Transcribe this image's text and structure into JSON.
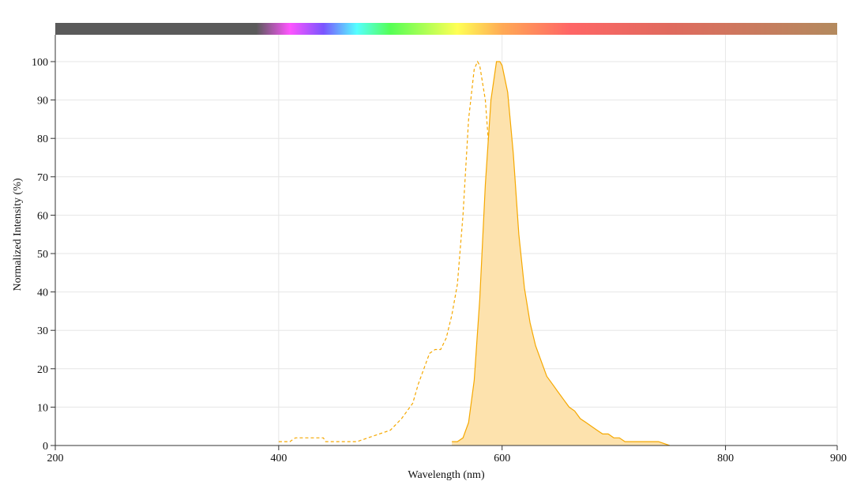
{
  "chart_data": {
    "type": "area",
    "xlabel": "Wavelength (nm)",
    "ylabel": "Normalized Intensity (%)",
    "xlim": [
      200,
      900
    ],
    "ylim": [
      0,
      100
    ],
    "x_ticks": [
      200,
      400,
      600,
      800,
      900
    ],
    "y_ticks": [
      0,
      10,
      20,
      30,
      40,
      50,
      60,
      70,
      80,
      90,
      100
    ],
    "grid": true,
    "legend": "none",
    "spectrum_bar": {
      "visible": true,
      "stops": [
        {
          "nm": 200,
          "color": "#5a5a5a"
        },
        {
          "nm": 380,
          "color": "#5a5a5a"
        },
        {
          "nm": 410,
          "color": "#ff55ff"
        },
        {
          "nm": 440,
          "color": "#7a55ff"
        },
        {
          "nm": 470,
          "color": "#55ffff"
        },
        {
          "nm": 500,
          "color": "#55ff55"
        },
        {
          "nm": 560,
          "color": "#ffff55"
        },
        {
          "nm": 600,
          "color": "#ffaa55"
        },
        {
          "nm": 660,
          "color": "#ff6666"
        },
        {
          "nm": 750,
          "color": "#e06a5e"
        },
        {
          "nm": 900,
          "color": "#b38a5e"
        }
      ]
    },
    "series": [
      {
        "style": "dashed",
        "color": "#f5a800",
        "x": [
          400,
          410,
          415,
          420,
          440,
          442,
          445,
          470,
          480,
          490,
          500,
          510,
          520,
          525,
          530,
          535,
          540,
          545,
          550,
          555,
          560,
          565,
          570,
          575,
          578,
          580,
          585,
          590,
          595,
          600,
          605,
          610,
          615,
          618
        ],
        "y": [
          1,
          1,
          2,
          2,
          2,
          1,
          1,
          1,
          2,
          3,
          4,
          7,
          11,
          16,
          20,
          24,
          25,
          25,
          28,
          34,
          42,
          60,
          85,
          98,
          100,
          99,
          90,
          70,
          42,
          22,
          11,
          5,
          2,
          0
        ]
      },
      {
        "style": "solid-filled",
        "color": "#f5a800",
        "fill": "#fde2ad",
        "x": [
          555,
          560,
          565,
          570,
          575,
          580,
          585,
          590,
          595,
          598,
          600,
          605,
          610,
          615,
          620,
          625,
          630,
          635,
          640,
          645,
          650,
          655,
          660,
          665,
          670,
          675,
          680,
          685,
          690,
          695,
          700,
          705,
          710,
          720,
          730,
          740,
          750
        ],
        "y": [
          1,
          1,
          2,
          6,
          17,
          38,
          68,
          90,
          100,
          100,
          99,
          92,
          76,
          55,
          41,
          32,
          26,
          22,
          18,
          16,
          14,
          12,
          10,
          9,
          7,
          6,
          5,
          4,
          3,
          3,
          2,
          2,
          1,
          1,
          1,
          1,
          0
        ]
      }
    ]
  }
}
